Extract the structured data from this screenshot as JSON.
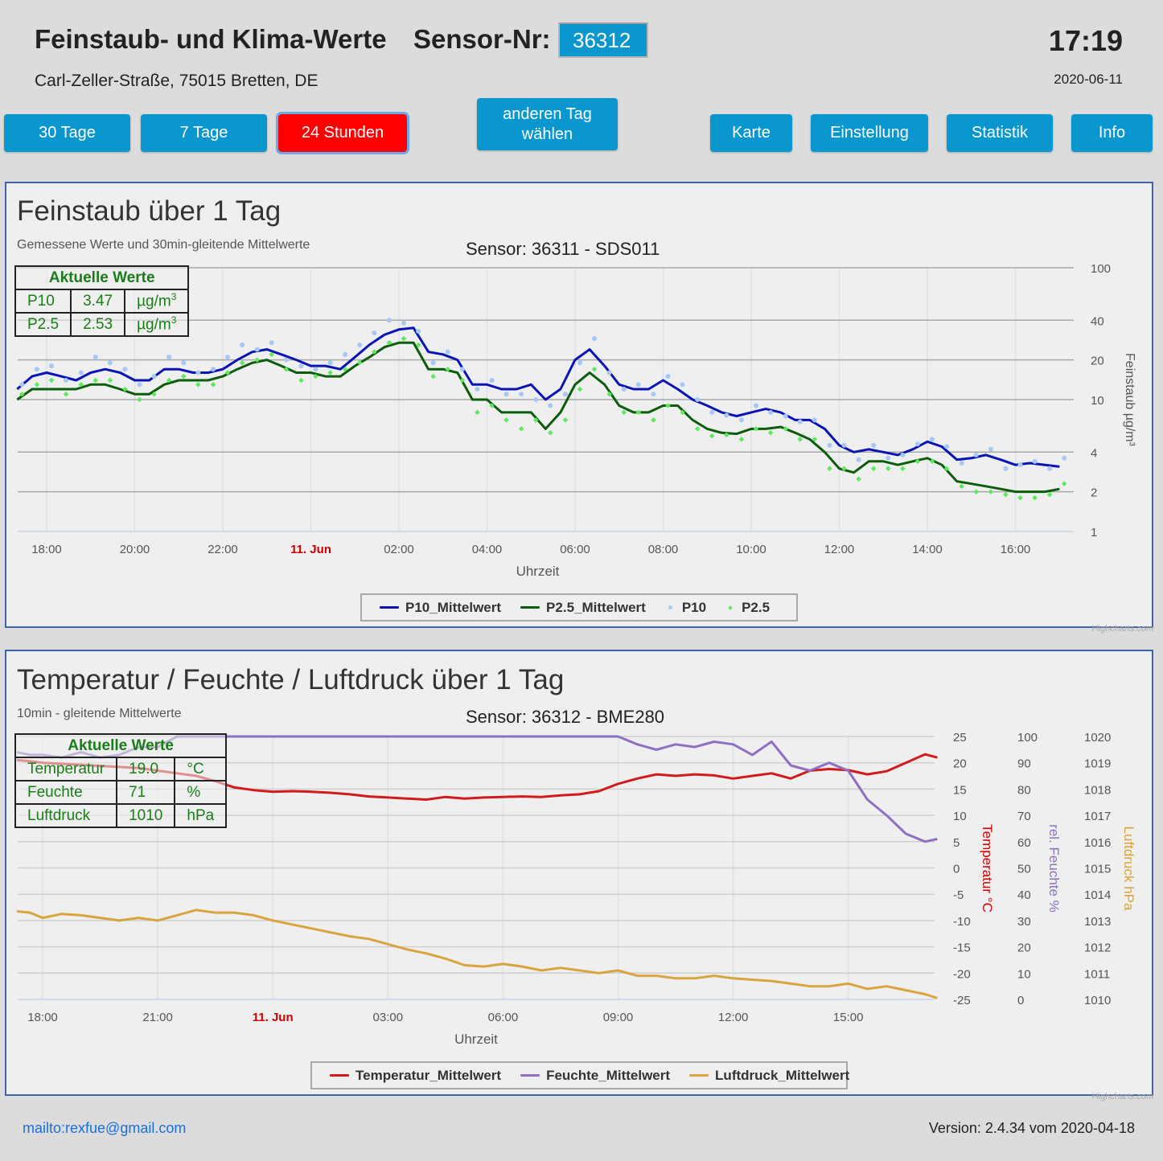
{
  "header": {
    "title": "Feinstaub- und Klima-Werte",
    "sensor_label": "Sensor-Nr:",
    "sensor_value": "36312",
    "address": "Carl-Zeller-Straße, 75015 Bretten, DE",
    "time": "17:19",
    "date": "2020-06-11"
  },
  "nav": {
    "btn_30": "30 Tage",
    "btn_7": "7 Tage",
    "btn_24": "24 Stunden",
    "btn_other_line1": "anderen Tag",
    "btn_other_line2": "wählen",
    "btn_karte": "Karte",
    "btn_einstellung": "Einstellung",
    "btn_statistik": "Statistik",
    "btn_info": "Info",
    "active": "24 Stunden"
  },
  "colors": {
    "button": "#0a97cf",
    "button_active": "#ff0000",
    "panel_border": "#3e63a8",
    "table_text": "#1a7d1a",
    "date_label": "#cc0000"
  },
  "dust_panel": {
    "title": "Feinstaub über 1 Tag",
    "subtitle": "Gemessene Werte und 30min-gleitende Mittelwerte",
    "sensor": "Sensor: 36311 - SDS011",
    "current": {
      "heading": "Aktuelle Werte",
      "rows": [
        {
          "name": "P10",
          "value": "3.47",
          "unit": "µg/m",
          "sup": "3"
        },
        {
          "name": "P2.5",
          "value": "2.53",
          "unit": "µg/m",
          "sup": "3"
        }
      ]
    },
    "credit": "Highcharts.com"
  },
  "climate_panel": {
    "title": "Temperatur / Feuchte / Luftdruck über 1 Tag",
    "subtitle": "10min - gleitende Mittelwerte",
    "sensor": "Sensor: 36312 - BME280",
    "current": {
      "heading": "Aktuelle Werte",
      "rows": [
        {
          "name": "Temperatur",
          "value": "19.0",
          "unit": "°C"
        },
        {
          "name": "Feuchte",
          "value": "71",
          "unit": "%"
        },
        {
          "name": "Luftdruck",
          "value": "1010",
          "unit": "hPa"
        }
      ]
    },
    "credit": "Highcharts.com"
  },
  "footer": {
    "mail": "mailto:rexfue@gmail.com",
    "version": "Version: 2.4.34 vom 2020-04-18"
  },
  "chart_data": [
    {
      "type": "line",
      "title": "Feinstaub über 1 Tag",
      "xlabel": "Uhrzeit",
      "ylabel": "Feinstaub µg/m³",
      "yscale": "log",
      "ylim": [
        1,
        100
      ],
      "y_ticks": [
        1,
        2,
        4,
        10,
        20,
        40,
        100
      ],
      "x_tick_labels": [
        "18:00",
        "20:00",
        "22:00",
        "11. Jun",
        "02:00",
        "04:00",
        "06:00",
        "08:00",
        "10:00",
        "12:00",
        "14:00",
        "16:00"
      ],
      "x_tick_hours": [
        18,
        20,
        22,
        24,
        26,
        28,
        30,
        32,
        34,
        36,
        38,
        40
      ],
      "x_range_hours": [
        17.33,
        41.0
      ],
      "legend_position": "bottom-center",
      "grid": true,
      "x_hours": [
        17.33,
        17.67,
        18.0,
        18.33,
        18.67,
        19.0,
        19.33,
        19.67,
        20.0,
        20.33,
        20.67,
        21.0,
        21.33,
        21.67,
        22.0,
        22.33,
        22.67,
        23.0,
        23.33,
        23.67,
        24.0,
        24.33,
        24.67,
        25.0,
        25.33,
        25.67,
        26.0,
        26.33,
        26.67,
        27.0,
        27.33,
        27.67,
        28.0,
        28.33,
        28.67,
        29.0,
        29.33,
        29.67,
        30.0,
        30.33,
        30.67,
        31.0,
        31.33,
        31.67,
        32.0,
        32.33,
        32.67,
        33.0,
        33.33,
        33.67,
        34.0,
        34.33,
        34.67,
        35.0,
        35.33,
        35.67,
        36.0,
        36.33,
        36.67,
        37.0,
        37.33,
        37.67,
        38.0,
        38.33,
        38.67,
        39.0,
        39.33,
        39.67,
        40.0,
        40.33,
        40.67,
        41.0
      ],
      "series": [
        {
          "name": "P10_Mittelwert",
          "color": "#0a14b4",
          "kind": "line",
          "values": [
            12,
            15,
            16,
            15,
            14,
            16,
            17,
            16,
            14,
            14,
            17,
            17,
            16,
            16,
            17,
            20,
            23,
            24,
            22,
            20,
            18,
            18,
            17,
            21,
            26,
            31,
            34,
            35,
            23,
            22,
            20,
            13,
            13,
            12,
            12,
            13,
            10,
            12,
            20,
            24,
            18,
            13,
            12,
            12,
            14,
            12,
            10,
            9,
            8,
            7.5,
            8,
            8.5,
            8,
            7,
            7,
            6,
            4.5,
            4,
            4.2,
            4,
            3.8,
            4.2,
            4.8,
            4.4,
            3.5,
            3.6,
            3.8,
            3.5,
            3.2,
            3.3,
            3.2,
            3.1
          ]
        },
        {
          "name": "P2.5_Mittelwert",
          "color": "#0b5c0b",
          "kind": "line",
          "values": [
            10,
            12,
            12,
            12,
            12,
            13,
            13,
            12,
            11,
            11,
            13,
            14,
            14,
            14,
            15,
            17,
            19,
            20,
            18,
            16,
            16,
            15,
            15,
            18,
            21,
            25,
            27,
            27,
            17,
            17,
            16,
            10,
            10,
            8,
            8,
            8,
            6,
            8,
            13,
            16,
            13,
            9,
            8,
            8,
            9,
            9,
            7,
            6,
            5.6,
            5.5,
            6,
            6,
            6.2,
            5.6,
            5,
            4,
            3,
            2.8,
            3.4,
            3.4,
            3.2,
            3.4,
            3.6,
            3.2,
            2.4,
            2.3,
            2.2,
            2.1,
            2.0,
            2.0,
            2.0,
            2.1
          ]
        },
        {
          "name": "P10",
          "color": "#a7c7f4",
          "kind": "scatter",
          "values": [
            13,
            17,
            18,
            14,
            16,
            21,
            19,
            17,
            13,
            15,
            21,
            19,
            16,
            17,
            21,
            26,
            24,
            27,
            20,
            18,
            17,
            19,
            22,
            26,
            32,
            40,
            38,
            33,
            19,
            23,
            17,
            12,
            14,
            11,
            11,
            10,
            9,
            11,
            19,
            29,
            16,
            12,
            13,
            11,
            15,
            13,
            10,
            8,
            7.6,
            7,
            9,
            8,
            7.5,
            6.8,
            7,
            4.5,
            4.5,
            3.5,
            4.5,
            3.6,
            3.8,
            4.6,
            5,
            4.4,
            3.3,
            3.8,
            4.2,
            3.0,
            3.2,
            3.4,
            3.0,
            3.6
          ]
        },
        {
          "name": "P2.5",
          "color": "#5ee85e",
          "kind": "scatter",
          "values": [
            11,
            13,
            14,
            11,
            13,
            14,
            14,
            12,
            10,
            11,
            14,
            15,
            13,
            13,
            16,
            19,
            20,
            22,
            17,
            14,
            15,
            16,
            17,
            19,
            23,
            27,
            29,
            26,
            15,
            17,
            14,
            8,
            9,
            7,
            6,
            7,
            5.6,
            7,
            12,
            17,
            11,
            8,
            8,
            7,
            9,
            8,
            6,
            5.3,
            5.4,
            5,
            6,
            5.6,
            6,
            5,
            5,
            3,
            3,
            2.5,
            3,
            3,
            3,
            3.4,
            3.4,
            3,
            2.2,
            2.0,
            2.0,
            1.9,
            1.8,
            1.8,
            1.9,
            2.3
          ]
        }
      ]
    },
    {
      "type": "line",
      "title": "Temperatur / Feuchte / Luftdruck über 1 Tag",
      "xlabel": "Uhrzeit",
      "x_tick_labels": [
        "18:00",
        "21:00",
        "11. Jun",
        "03:00",
        "06:00",
        "09:00",
        "12:00",
        "15:00"
      ],
      "x_tick_hours": [
        18,
        21,
        24,
        27,
        30,
        33,
        36,
        39
      ],
      "x_range_hours": [
        17.33,
        41.32
      ],
      "legend_position": "bottom-center",
      "grid": true,
      "axes": [
        {
          "label": "Temperatur °C",
          "color": "#cc0000",
          "min": -25,
          "max": 25,
          "ticks": [
            25,
            20,
            15,
            10,
            5,
            0,
            -5,
            -10,
            -15,
            -20,
            -25
          ]
        },
        {
          "label": "rel. Feuchte %",
          "color": "#8e6fc2",
          "min": 0,
          "max": 100,
          "ticks": [
            100,
            90,
            80,
            70,
            60,
            50,
            40,
            30,
            20,
            10,
            0
          ]
        },
        {
          "label": "Luftdruck hPa",
          "color": "#d9a43c",
          "min": 1010,
          "max": 1020,
          "ticks": [
            1020,
            1019,
            1018,
            1017,
            1016,
            1015,
            1014,
            1013,
            1012,
            1011,
            1010
          ]
        }
      ],
      "x_hours": [
        17.33,
        17.67,
        18.0,
        18.5,
        19.0,
        19.5,
        20.0,
        20.5,
        21.0,
        21.5,
        22.0,
        22.5,
        23.0,
        23.5,
        24.0,
        24.5,
        25.0,
        25.5,
        26.0,
        26.5,
        27.0,
        27.5,
        28.0,
        28.5,
        29.0,
        29.5,
        30.0,
        30.5,
        31.0,
        31.5,
        32.0,
        32.5,
        33.0,
        33.5,
        34.0,
        34.5,
        35.0,
        35.5,
        36.0,
        36.5,
        37.0,
        37.5,
        38.0,
        38.5,
        39.0,
        39.5,
        40.0,
        40.5,
        41.0,
        41.32
      ],
      "series": [
        {
          "name": "Temperatur_Mittelwert",
          "axis": 0,
          "color": "#d11a1a",
          "values": [
            20.5,
            20.3,
            20.0,
            19.8,
            19.6,
            19.4,
            19.2,
            19.0,
            18.5,
            18.0,
            17.5,
            16.5,
            15.3,
            14.8,
            14.5,
            14.6,
            14.5,
            14.3,
            14.0,
            13.6,
            13.4,
            13.2,
            13.0,
            13.5,
            13.2,
            13.4,
            13.5,
            13.6,
            13.5,
            13.8,
            14.0,
            14.6,
            16.0,
            17.0,
            17.8,
            17.5,
            17.8,
            17.6,
            17.0,
            17.5,
            18.0,
            17.0,
            18.5,
            18.8,
            18.6,
            17.8,
            18.4,
            20.0,
            21.6,
            21.0
          ]
        },
        {
          "name": "Feuchte_Mittelwert",
          "axis": 1,
          "color": "#8e6fc2",
          "values": [
            94,
            93,
            93,
            92,
            94,
            92,
            93,
            96,
            96,
            100,
            100,
            100,
            100,
            100,
            100,
            100,
            100,
            100,
            100,
            100,
            100,
            100,
            100,
            100,
            100,
            100,
            100,
            100,
            100,
            100,
            100,
            100,
            100,
            97,
            95,
            97,
            96,
            98,
            97,
            93,
            98,
            89,
            87,
            90,
            87,
            76,
            70,
            63,
            60,
            61
          ]
        },
        {
          "name": "Luftdruck_Mittelwert",
          "axis": 2,
          "color": "#d9a43c",
          "values": [
            1013.35,
            1013.3,
            1013.1,
            1013.25,
            1013.2,
            1013.1,
            1013.0,
            1013.1,
            1013.0,
            1013.2,
            1013.4,
            1013.3,
            1013.3,
            1013.2,
            1013.0,
            1012.85,
            1012.7,
            1012.55,
            1012.4,
            1012.3,
            1012.1,
            1011.9,
            1011.75,
            1011.55,
            1011.3,
            1011.25,
            1011.35,
            1011.25,
            1011.1,
            1011.2,
            1011.1,
            1011.0,
            1011.1,
            1010.9,
            1010.9,
            1010.8,
            1010.8,
            1010.9,
            1010.8,
            1010.75,
            1010.7,
            1010.6,
            1010.5,
            1010.5,
            1010.6,
            1010.4,
            1010.5,
            1010.35,
            1010.2,
            1010.05
          ]
        }
      ]
    }
  ]
}
